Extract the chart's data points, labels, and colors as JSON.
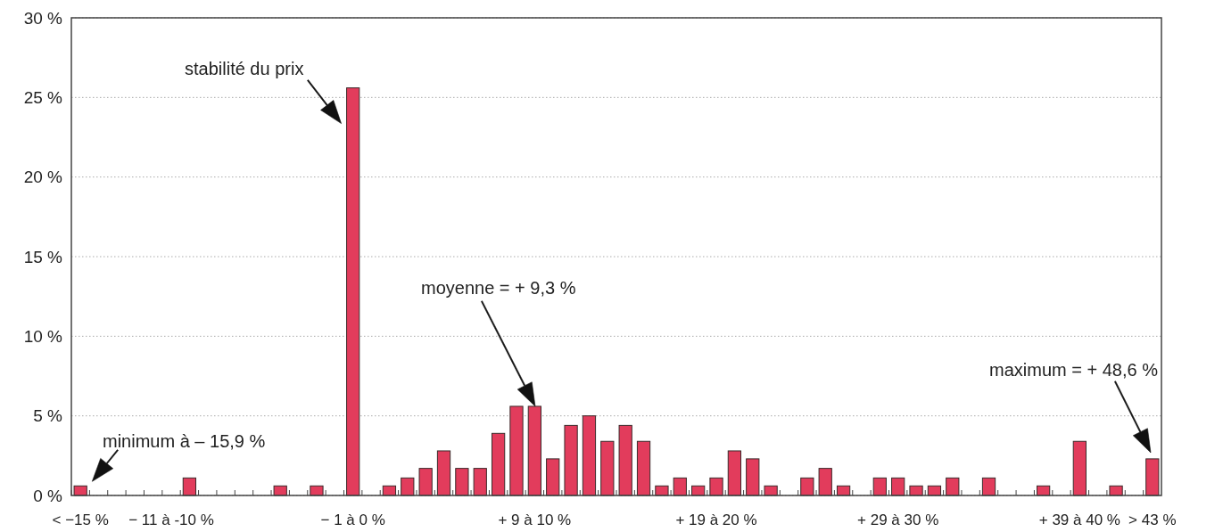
{
  "chart_data": {
    "type": "bar",
    "categories": [
      "< −15 %",
      null,
      null,
      null,
      null,
      "− 11 à -10 %",
      null,
      null,
      null,
      null,
      null,
      null,
      null,
      null,
      null,
      "− 1 à 0 %",
      null,
      null,
      null,
      null,
      null,
      null,
      null,
      null,
      null,
      "+ 9 à 10 %",
      null,
      null,
      null,
      null,
      null,
      null,
      null,
      null,
      null,
      "+ 19 à 20 %",
      null,
      null,
      null,
      null,
      null,
      null,
      null,
      null,
      null,
      "+ 29 à 30 %",
      null,
      null,
      null,
      null,
      null,
      null,
      null,
      null,
      null,
      "+ 39 à 40 %",
      null,
      null,
      null,
      "> 43 %"
    ],
    "values": [
      0.6,
      0,
      0,
      0,
      0,
      0,
      1.1,
      0,
      0,
      0,
      0,
      0.6,
      0,
      0.6,
      0,
      25.6,
      0,
      0.6,
      1.1,
      1.7,
      2.8,
      1.7,
      1.7,
      3.9,
      5.6,
      5.6,
      2.3,
      4.4,
      5.0,
      3.4,
      4.4,
      3.4,
      0.6,
      1.1,
      0.6,
      1.1,
      2.8,
      2.3,
      0.6,
      0,
      1.1,
      1.7,
      0.6,
      0,
      1.1,
      1.1,
      0.6,
      0.6,
      1.1,
      0,
      1.1,
      0,
      0,
      0.6,
      0,
      3.4,
      0,
      0.6,
      0,
      2.3
    ],
    "color": "#e23c5c",
    "ylim": [
      0,
      30
    ],
    "yticks": [
      {
        "value": 0,
        "label": "0 %"
      },
      {
        "value": 5,
        "label": "5 %"
      },
      {
        "value": 10,
        "label": "10 %"
      },
      {
        "value": 15,
        "label": "15 %"
      },
      {
        "value": 20,
        "label": "20 %"
      },
      {
        "value": 25,
        "label": "25 %"
      },
      {
        "value": 30,
        "label": "30 %"
      }
    ],
    "grid": "y",
    "annotations": [
      {
        "text": "minimum à – 15,9 %",
        "x": "< −15 %",
        "y": 0.6
      },
      {
        "text": "stabilité du prix",
        "x": "− 1 à 0 %",
        "y": 25.6
      },
      "moyenne = + 9,3 %",
      "maximum = + 48,6 %"
    ]
  }
}
